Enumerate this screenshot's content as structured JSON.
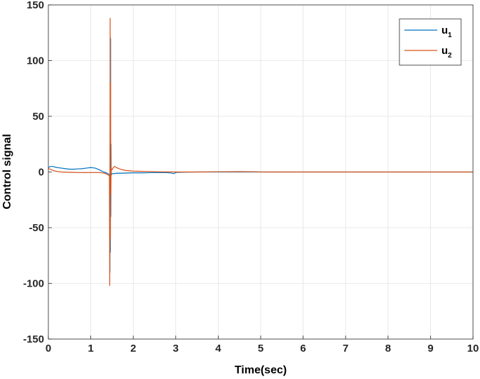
{
  "chart_data": {
    "type": "line",
    "title": "",
    "xlabel": "Time(sec)",
    "ylabel": "Control signal",
    "xlim": [
      0,
      10
    ],
    "ylim": [
      -150,
      150
    ],
    "xticks": [
      0,
      1,
      2,
      3,
      4,
      5,
      6,
      7,
      8,
      9,
      10
    ],
    "xtick_labels": [
      "0",
      "1",
      "2",
      "3",
      "4",
      "5",
      "6",
      "7",
      "8",
      "9",
      "10"
    ],
    "yticks": [
      -150,
      -100,
      -50,
      0,
      50,
      100,
      150
    ],
    "ytick_labels": [
      "-150",
      "-100",
      "-50",
      "0",
      "50",
      "100",
      "150"
    ],
    "grid": true,
    "legend_position": "top-right",
    "series": [
      {
        "name": "u",
        "name_subscript": "1",
        "color": "#0072BD",
        "x": [
          0,
          0.05,
          0.1,
          0.2,
          0.3,
          0.4,
          0.5,
          0.6,
          0.7,
          0.8,
          0.9,
          1.0,
          1.1,
          1.2,
          1.3,
          1.38,
          1.42,
          1.44,
          1.45,
          1.455,
          1.46,
          1.465,
          1.47,
          1.475,
          1.48,
          1.49,
          1.5,
          1.55,
          1.6,
          1.8,
          2.0,
          2.2,
          2.5,
          2.8,
          2.9,
          2.95,
          3.0,
          3.05,
          3.2,
          3.5,
          4.0,
          5.0,
          6.0,
          7.0,
          8.0,
          9.0,
          10.0
        ],
        "y": [
          4,
          5,
          5,
          4,
          3.5,
          3,
          2.5,
          2.5,
          2.8,
          3,
          3.5,
          4,
          3.5,
          2,
          0,
          -1,
          -2,
          -2,
          -90,
          100,
          -72,
          120,
          -40,
          25,
          -3,
          -2,
          -1.5,
          -1.5,
          -1.2,
          -1,
          -0.8,
          -0.8,
          -0.5,
          -0.6,
          -1,
          -1.5,
          -0.5,
          -0.3,
          -0.2,
          0,
          0,
          0,
          0,
          0,
          0,
          0,
          0
        ]
      },
      {
        "name": "u",
        "name_subscript": "2",
        "color": "#D95319",
        "x": [
          0,
          0.05,
          0.1,
          0.2,
          0.3,
          0.5,
          0.7,
          0.9,
          1.0,
          1.1,
          1.2,
          1.3,
          1.35,
          1.4,
          1.43,
          1.44,
          1.445,
          1.45,
          1.455,
          1.46,
          1.465,
          1.47,
          1.48,
          1.5,
          1.53,
          1.56,
          1.6,
          1.7,
          1.8,
          2.0,
          2.3,
          2.6,
          3.0,
          3.5,
          4.0,
          4.5,
          4.9,
          5.0,
          6.0,
          7.0,
          8.0,
          9.0,
          10.0
        ],
        "y": [
          3,
          2.5,
          1.5,
          0.5,
          0,
          -0.3,
          -0.5,
          -0.6,
          -0.5,
          -0.5,
          -0.5,
          -1,
          -1.5,
          -2.5,
          -3,
          -4,
          -102,
          -50,
          138,
          -60,
          80,
          -20,
          3,
          2,
          4,
          5,
          4,
          2.5,
          1.5,
          0.8,
          0.5,
          0.2,
          0,
          0,
          0.2,
          0.3,
          0.2,
          0,
          0,
          0,
          0,
          0,
          0
        ]
      }
    ]
  }
}
